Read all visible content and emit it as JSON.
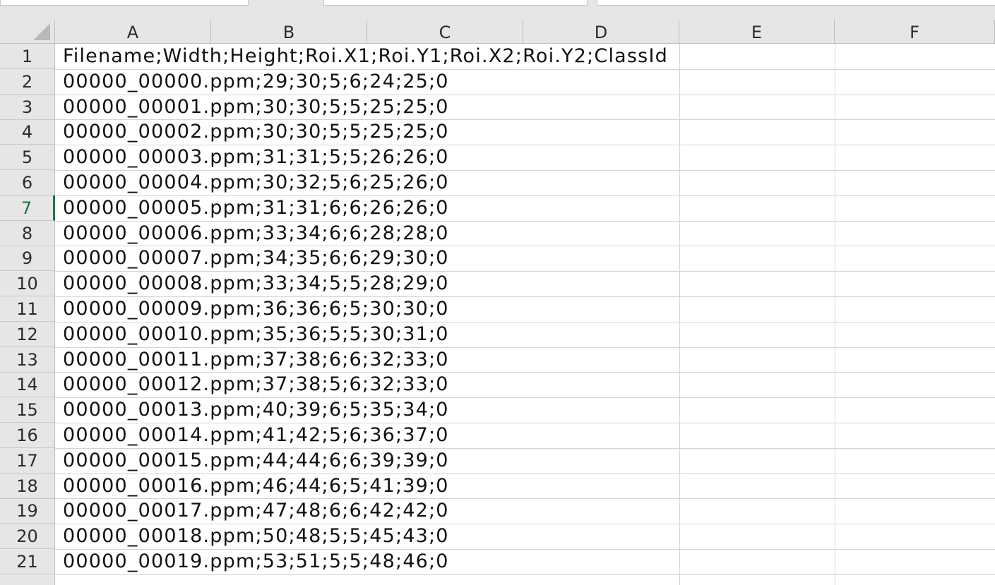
{
  "columns": [
    "A",
    "B",
    "C",
    "D",
    "E",
    "F"
  ],
  "rows": [
    {
      "num": "1",
      "a": "Filename;Width;Height;Roi.X1;Roi.Y1;Roi.X2;Roi.Y2;ClassId"
    },
    {
      "num": "2",
      "a": "00000_00000.ppm;29;30;5;6;24;25;0"
    },
    {
      "num": "3",
      "a": "00000_00001.ppm;30;30;5;5;25;25;0"
    },
    {
      "num": "4",
      "a": "00000_00002.ppm;30;30;5;5;25;25;0"
    },
    {
      "num": "5",
      "a": "00000_00003.ppm;31;31;5;5;26;26;0"
    },
    {
      "num": "6",
      "a": "00000_00004.ppm;30;32;5;6;25;26;0"
    },
    {
      "num": "7",
      "a": "00000_00005.ppm;31;31;6;6;26;26;0"
    },
    {
      "num": "8",
      "a": "00000_00006.ppm;33;34;6;6;28;28;0"
    },
    {
      "num": "9",
      "a": "00000_00007.ppm;34;35;6;6;29;30;0"
    },
    {
      "num": "10",
      "a": "00000_00008.ppm;33;34;5;5;28;29;0"
    },
    {
      "num": "11",
      "a": "00000_00009.ppm;36;36;6;5;30;30;0"
    },
    {
      "num": "12",
      "a": "00000_00010.ppm;35;36;5;5;30;31;0"
    },
    {
      "num": "13",
      "a": "00000_00011.ppm;37;38;6;6;32;33;0"
    },
    {
      "num": "14",
      "a": "00000_00012.ppm;37;38;5;6;32;33;0"
    },
    {
      "num": "15",
      "a": "00000_00013.ppm;40;39;6;5;35;34;0"
    },
    {
      "num": "16",
      "a": "00000_00014.ppm;41;42;5;6;36;37;0"
    },
    {
      "num": "17",
      "a": "00000_00015.ppm;44;44;6;6;39;39;0"
    },
    {
      "num": "18",
      "a": "00000_00016.ppm;46;44;6;5;41;39;0"
    },
    {
      "num": "19",
      "a": "00000_00017.ppm;47;48;6;6;42;42;0"
    },
    {
      "num": "20",
      "a": "00000_00018.ppm;50;48;5;5;45;43;0"
    },
    {
      "num": "21",
      "a": "00000_00019.ppm;53;51;5;5;48;46;0"
    }
  ],
  "active_row": "7",
  "colors": {
    "header_bg": "#e6e6e6",
    "gridline": "#d4d4d4",
    "active_accent": "#217346"
  }
}
